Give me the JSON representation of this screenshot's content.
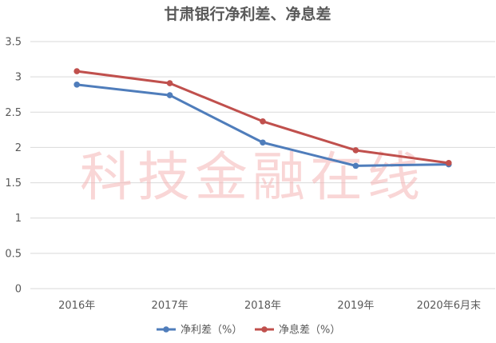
{
  "chart_data": {
    "type": "line",
    "title": "甘肃银行净利差、净息差",
    "categories": [
      "2016年",
      "2017年",
      "2018年",
      "2019年",
      "2020年6月末"
    ],
    "series": [
      {
        "name": "净利差（%）",
        "color": "#4f7dbb",
        "values": [
          2.89,
          2.74,
          2.07,
          1.74,
          1.76
        ]
      },
      {
        "name": "净息差（%）",
        "color": "#c0504d",
        "values": [
          3.08,
          2.91,
          2.37,
          1.96,
          1.78
        ]
      }
    ],
    "ylim": [
      0,
      3.5
    ],
    "yticks": [
      "0",
      "0.5",
      "1",
      "1.5",
      "2",
      "2.5",
      "3",
      "3.5"
    ],
    "xlabel": "",
    "ylabel": "",
    "grid": "horizontal",
    "legend": "bottom"
  },
  "watermark": "科技金融在线"
}
